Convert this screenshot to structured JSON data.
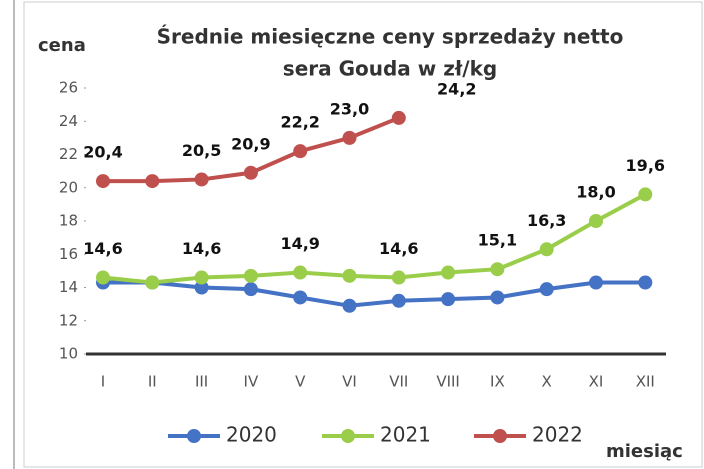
{
  "chart_data": {
    "type": "line",
    "title": "Średnie miesięczne ceny sprzedaży netto",
    "subtitle": "sera Gouda w zł/kg",
    "y_label": "cena",
    "x_label": "miesiąc",
    "categories": [
      "I",
      "II",
      "III",
      "IV",
      "V",
      "VI",
      "VII",
      "VIII",
      "IX",
      "X",
      "XI",
      "XII"
    ],
    "series": [
      {
        "name": "2020",
        "color": "#4472c4",
        "values": [
          14.3,
          14.3,
          14.0,
          13.9,
          13.4,
          12.9,
          13.2,
          13.3,
          13.4,
          13.9,
          14.3,
          14.3
        ]
      },
      {
        "name": "2021",
        "color": "#9acd4a",
        "values": [
          14.6,
          14.3,
          14.6,
          14.7,
          14.9,
          14.7,
          14.6,
          14.9,
          15.1,
          16.3,
          18.0,
          19.6
        ],
        "value_labels": [
          "14,6",
          null,
          "14,6",
          null,
          "14,9",
          null,
          "14,6",
          null,
          "15,1",
          "16,3",
          "18,0",
          "19,6"
        ]
      },
      {
        "name": "2022",
        "color": "#c0504d",
        "values": [
          20.4,
          20.4,
          20.5,
          20.9,
          22.2,
          23.0,
          24.2,
          null,
          null,
          null,
          null,
          null
        ],
        "value_labels": [
          "20,4",
          null,
          "20,5",
          "20,9",
          "22,2",
          "23,0",
          "24,2",
          null,
          null,
          null,
          null,
          null
        ]
      }
    ],
    "ylim": [
      10,
      26
    ],
    "yticks": [
      10,
      12,
      14,
      16,
      18,
      20,
      22,
      24,
      26
    ],
    "grid": false,
    "legend": "bottom"
  }
}
